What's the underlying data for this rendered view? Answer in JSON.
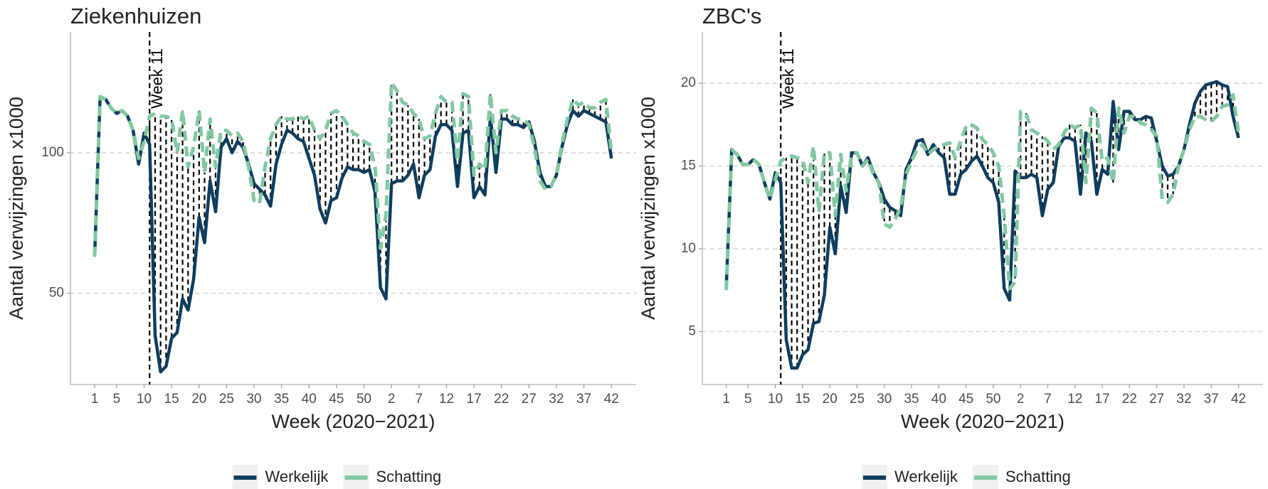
{
  "chart_data": [
    {
      "type": "line",
      "title": "Ziekenhuizen",
      "xlabel": "Week (2020−2021)",
      "ylabel": "Aantal verwijzingen x1000",
      "x": [
        1,
        2,
        3,
        4,
        5,
        6,
        7,
        8,
        9,
        10,
        11,
        12,
        13,
        14,
        15,
        16,
        17,
        18,
        19,
        20,
        21,
        22,
        23,
        24,
        25,
        26,
        27,
        28,
        29,
        30,
        31,
        32,
        33,
        34,
        35,
        36,
        37,
        38,
        39,
        40,
        41,
        42,
        43,
        44,
        45,
        46,
        47,
        48,
        49,
        50,
        51,
        52,
        53,
        54,
        55,
        56,
        57,
        58,
        59,
        60,
        61,
        62,
        63,
        64,
        65,
        66,
        67,
        68,
        69,
        70,
        71,
        72,
        73,
        74,
        75,
        76,
        77,
        78,
        79,
        80,
        81,
        82,
        83,
        84,
        85,
        86,
        87,
        88,
        89,
        90,
        91,
        92,
        93,
        94,
        95
      ],
      "series": [
        {
          "name": "Werkelijk",
          "color": "#0e3d5f",
          "values": [
            63,
            120,
            119,
            116,
            114,
            115,
            113,
            108,
            96,
            107,
            103,
            35,
            22,
            24,
            34,
            36,
            48,
            44,
            55,
            77,
            68,
            90,
            79,
            102,
            105,
            100,
            104,
            102,
            96,
            89,
            87,
            85,
            81,
            96,
            103,
            108,
            107,
            105,
            104,
            98,
            92,
            80,
            75,
            83,
            84,
            91,
            95,
            94,
            94,
            93,
            94,
            86,
            52,
            48,
            89,
            90,
            90,
            92,
            96,
            84,
            92,
            94,
            106,
            110,
            110,
            108,
            88,
            107,
            108,
            84,
            88,
            85,
            113,
            93,
            112,
            112,
            110,
            110,
            109,
            111,
            104,
            93,
            88,
            88,
            92,
            102,
            110,
            115,
            113,
            115,
            114,
            113,
            112,
            111,
            98
          ]
        },
        {
          "name": "Schatting",
          "color": "#82c8a2",
          "values": [
            63,
            120,
            119,
            116,
            114,
            115,
            113,
            108,
            98,
            104,
            113,
            114,
            113,
            113,
            112,
            100,
            115,
            95,
            102,
            115,
            93,
            112,
            95,
            108,
            108,
            106,
            107,
            104,
            95,
            83,
            82,
            95,
            105,
            110,
            113,
            112,
            112,
            113,
            112,
            113,
            108,
            105,
            108,
            114,
            115,
            113,
            110,
            107,
            106,
            104,
            103,
            95,
            66,
            78,
            125,
            122,
            118,
            117,
            114,
            112,
            105,
            106,
            114,
            120,
            118,
            118,
            97,
            121,
            120,
            92,
            96,
            94,
            121,
            100,
            115,
            115,
            113,
            112,
            112,
            110,
            102,
            90,
            87,
            88,
            92,
            103,
            112,
            119,
            117,
            118,
            116,
            116,
            118,
            119,
            100
          ]
        }
      ],
      "xlim": [
        -3.4,
        99.5
      ],
      "ylim": [
        17.5,
        143
      ],
      "xticks": [
        1,
        5,
        10,
        15,
        20,
        25,
        30,
        35,
        40,
        45,
        50,
        {
          "value": 55,
          "label": "2"
        },
        {
          "value": 60,
          "label": "7"
        },
        {
          "value": 65,
          "label": "12"
        },
        {
          "value": 70,
          "label": "17"
        },
        {
          "value": 75,
          "label": "22"
        },
        {
          "value": 80,
          "label": "27"
        },
        {
          "value": 85,
          "label": "32"
        },
        {
          "value": 90,
          "label": "37"
        },
        {
          "value": 95,
          "label": "42"
        }
      ],
      "yticks": [
        50,
        100
      ],
      "grid": true,
      "legend": "bottom",
      "annotation": {
        "x": 11,
        "text": "Week 11"
      }
    },
    {
      "type": "line",
      "title": "ZBC's",
      "xlabel": "Week (2020−2021)",
      "ylabel": "Aantal verwijzingen x1000",
      "x": [
        1,
        2,
        3,
        4,
        5,
        6,
        7,
        8,
        9,
        10,
        11,
        12,
        13,
        14,
        15,
        16,
        17,
        18,
        19,
        20,
        21,
        22,
        23,
        24,
        25,
        26,
        27,
        28,
        29,
        30,
        31,
        32,
        33,
        34,
        35,
        36,
        37,
        38,
        39,
        40,
        41,
        42,
        43,
        44,
        45,
        46,
        47,
        48,
        49,
        50,
        51,
        52,
        53,
        54,
        55,
        56,
        57,
        58,
        59,
        60,
        61,
        62,
        63,
        64,
        65,
        66,
        67,
        68,
        69,
        70,
        71,
        72,
        73,
        74,
        75,
        76,
        77,
        78,
        79,
        80,
        81,
        82,
        83,
        84,
        85,
        86,
        87,
        88,
        89,
        90,
        91,
        92,
        93,
        94,
        95
      ],
      "series": [
        {
          "name": "Werkelijk",
          "color": "#0e3d5f",
          "values": [
            7.7,
            16,
            15.7,
            15.1,
            15.1,
            15.4,
            15.1,
            14,
            13,
            14.6,
            14,
            4.5,
            2.8,
            2.8,
            3.6,
            3.9,
            5.5,
            5.6,
            7.2,
            11.3,
            9.7,
            13.8,
            12.2,
            15.8,
            15.8,
            15,
            15.5,
            14.6,
            14,
            13,
            12.5,
            12.3,
            12,
            14.8,
            15.5,
            16.5,
            16.6,
            15.7,
            16.3,
            15.8,
            15.5,
            13.3,
            13.3,
            14.5,
            14.8,
            15.3,
            15.6,
            15,
            14.3,
            14,
            12.8,
            7.6,
            6.9,
            14.7,
            14.3,
            14.3,
            14.5,
            14.3,
            12,
            13.6,
            14,
            16.2,
            16.7,
            16.7,
            16.5,
            13.3,
            17,
            16.5,
            13.3,
            14.8,
            14.5,
            18.9,
            16,
            18.3,
            18.3,
            17.8,
            17.8,
            18,
            17.9,
            16.5,
            15,
            14.4,
            14.5,
            15,
            16,
            17.5,
            18.8,
            19.5,
            19.9,
            20,
            20.1,
            19.9,
            19.8,
            18,
            16.7
          ]
        },
        {
          "name": "Schatting",
          "color": "#82c8a2",
          "values": [
            7.5,
            16,
            15.7,
            15.1,
            15.1,
            15.4,
            15.1,
            14,
            13,
            14.2,
            15.3,
            15.5,
            15.6,
            15.5,
            15.4,
            14,
            16.2,
            12.2,
            15.8,
            15.8,
            12,
            15.7,
            13.5,
            15.7,
            15.8,
            15,
            15.4,
            14.5,
            14,
            11.5,
            11.3,
            11.8,
            12.5,
            14.5,
            15.3,
            16,
            16.3,
            15.7,
            16,
            16.2,
            16.3,
            16.4,
            15.5,
            16.5,
            17.4,
            17.5,
            17.3,
            16.6,
            16.3,
            15.8,
            15,
            12,
            7.6,
            8,
            18.3,
            18.2,
            17.2,
            17,
            16.8,
            16.5,
            16,
            16.3,
            17,
            17.5,
            17.3,
            17.5,
            14,
            18.5,
            18.2,
            15.3,
            15.5,
            14,
            18.5,
            17,
            18,
            18,
            17.6,
            17.5,
            17.2,
            16.8,
            13,
            12.8,
            13.3,
            15,
            16,
            17.2,
            18,
            18,
            17.8,
            17.7,
            18,
            18.6,
            18.7,
            19.3,
            17
          ]
        }
      ],
      "xlim": [
        -3.4,
        99.5
      ],
      "ylim": [
        1.8,
        23.1
      ],
      "xticks": [
        1,
        5,
        10,
        15,
        20,
        25,
        30,
        35,
        40,
        45,
        50,
        {
          "value": 55,
          "label": "2"
        },
        {
          "value": 60,
          "label": "7"
        },
        {
          "value": 65,
          "label": "12"
        },
        {
          "value": 70,
          "label": "17"
        },
        {
          "value": 75,
          "label": "22"
        },
        {
          "value": 80,
          "label": "27"
        },
        {
          "value": 85,
          "label": "32"
        },
        {
          "value": 90,
          "label": "37"
        },
        {
          "value": 95,
          "label": "42"
        }
      ],
      "yticks": [
        5,
        10,
        15,
        20
      ],
      "grid": true,
      "legend": "bottom",
      "annotation": {
        "x": 11,
        "text": "Week 11"
      }
    }
  ]
}
